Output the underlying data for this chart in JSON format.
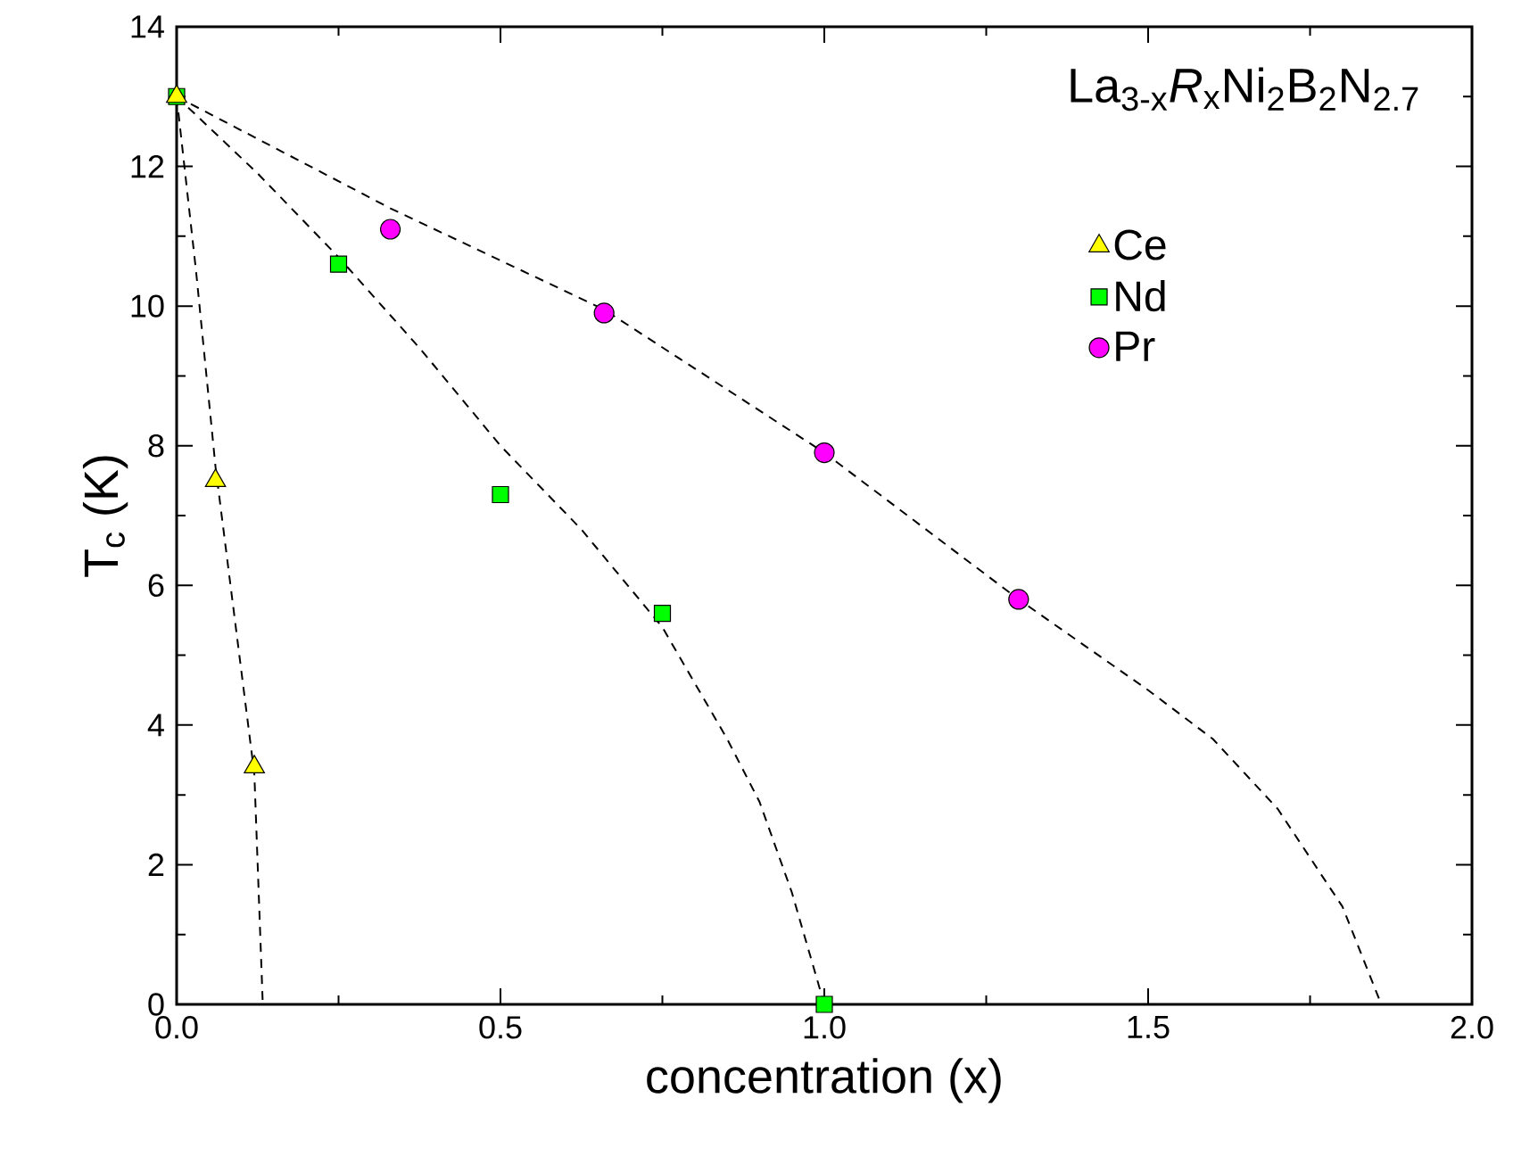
{
  "chart_data": {
    "type": "scatter",
    "xlabel": "concentration (x)",
    "ylabel": "T$_{c}$ (K)",
    "annotations": [
      "La$_{3-x}$*R*$_{x}$Ni$_{2}$B$_{2}$N$_{2.7}$"
    ],
    "xlim": [
      0,
      2
    ],
    "ylim": [
      0,
      14
    ],
    "xticks": [
      {
        "value": 0,
        "label": "0.0"
      },
      {
        "value": 0.5,
        "label": "0.5"
      },
      {
        "value": 1,
        "label": "1.0"
      },
      {
        "value": 1.5,
        "label": "1.5"
      },
      {
        "value": 2,
        "label": "2.0"
      }
    ],
    "yticks": [
      0,
      2,
      4,
      6,
      8,
      10,
      12,
      14
    ],
    "grid": false,
    "legend": "top right",
    "series": [
      {
        "name": "Ce",
        "marker": "triangle",
        "color": "#ffff00",
        "x": [
          0,
          0.06,
          0.12
        ],
        "values": [
          13,
          7.5,
          3.4
        ]
      },
      {
        "name": "Nd",
        "marker": "square",
        "color": "#00ff00",
        "x": [
          0,
          0.25,
          0.5,
          0.75,
          1.0
        ],
        "values": [
          13,
          10.6,
          7.3,
          5.6,
          0
        ]
      },
      {
        "name": "Pr",
        "marker": "circle",
        "color": "#ff00ff",
        "x": [
          0.33,
          0.66,
          1.0,
          1.3
        ],
        "values": [
          11.1,
          9.9,
          7.9,
          5.8
        ]
      },
      {
        "type": "line",
        "line_style": "dashed",
        "color": "#000000",
        "x": [
          0,
          0.03,
          0.06,
          0.09,
          0.12,
          0.133
        ],
        "values": [
          13,
          10.5,
          7.7,
          5.5,
          3.3,
          0
        ]
      },
      {
        "type": "line",
        "line_style": "dashed",
        "color": "#000000",
        "x": [
          0,
          0.125,
          0.25,
          0.375,
          0.5,
          0.625,
          0.75,
          0.85,
          0.9,
          0.95,
          1.0
        ],
        "values": [
          13,
          11.9,
          10.7,
          9.4,
          8.0,
          6.8,
          5.4,
          3.8,
          2.9,
          1.6,
          0
        ]
      },
      {
        "type": "line",
        "line_style": "dashed",
        "color": "#000000",
        "x": [
          0,
          0.33,
          0.66,
          1.0,
          1.3,
          1.5,
          1.6,
          1.7,
          1.8,
          1.86
        ],
        "values": [
          13,
          11.4,
          9.95,
          7.9,
          5.8,
          4.5,
          3.8,
          2.8,
          1.4,
          0
        ]
      }
    ]
  }
}
